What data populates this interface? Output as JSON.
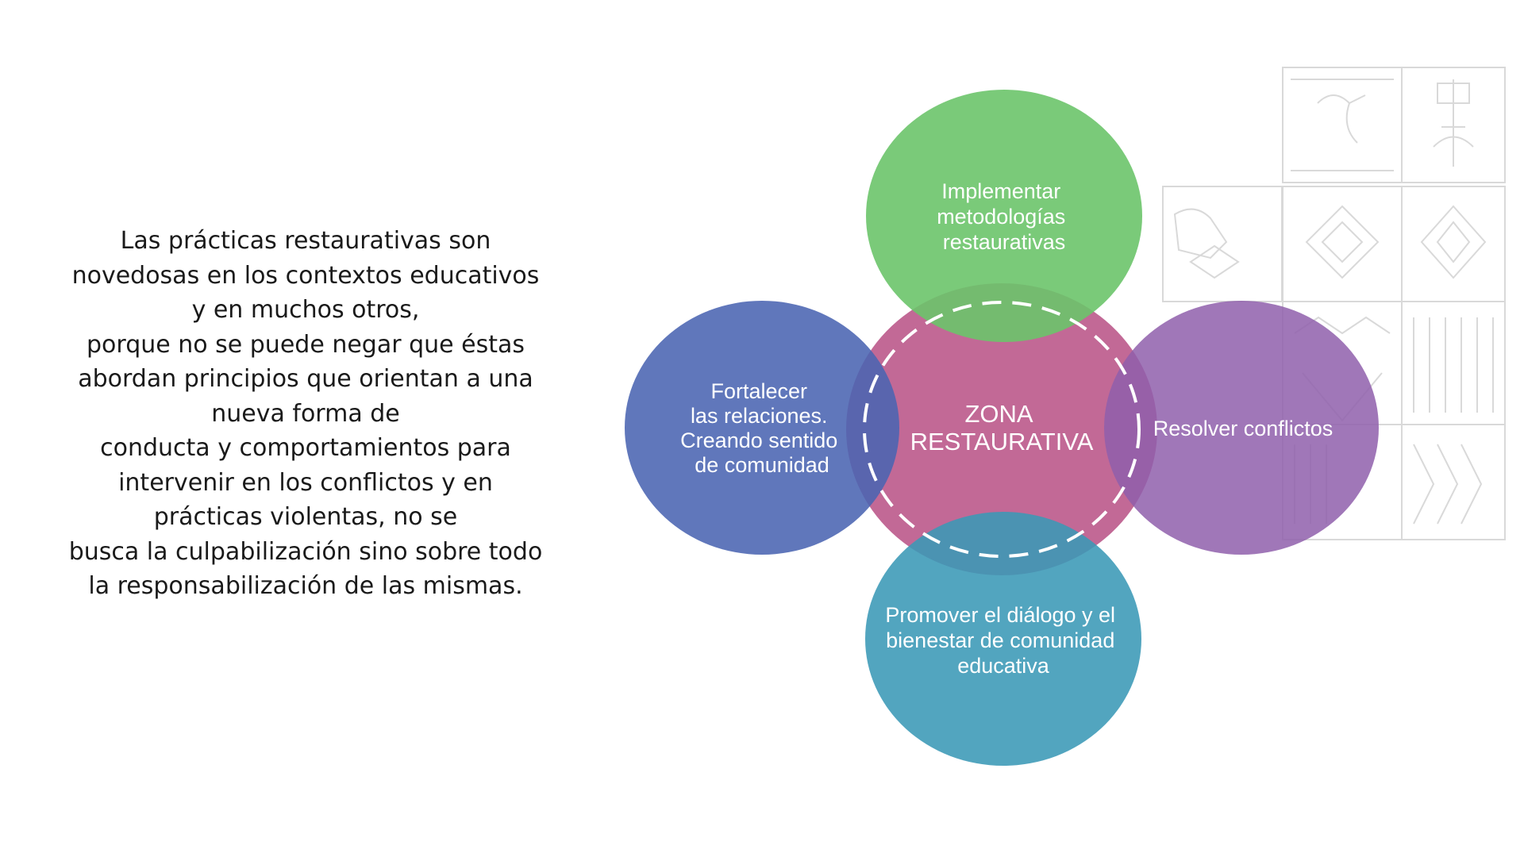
{
  "intro_text": {
    "lines": [
      "Las prácticas restaurativas son",
      "novedosas en los contextos educativos",
      "y en muchos otros,",
      "porque no se puede negar que éstas",
      "abordan principios que orientan a una",
      "nueva forma de",
      "conducta y comportamientos para",
      "intervenir en los conflictos y en",
      "prácticas violentas, no se",
      "busca la culpabilización sino sobre todo",
      "la responsabilización de las mismas."
    ]
  },
  "diagram": {
    "center": {
      "lines": [
        "ZONA",
        "RESTAURATIVA"
      ],
      "color": "#b5487f"
    },
    "top": {
      "lines": [
        "Implementar",
        "metodologías",
        "restaurativas"
      ],
      "color": "#6cc46a"
    },
    "left": {
      "lines": [
        "Fortalecer",
        "las relaciones.",
        "Creando sentido",
        "de comunidad"
      ],
      "color": "#4a64b2"
    },
    "right": {
      "lines": [
        "Resolver conflictos"
      ],
      "color": "#8f5fab"
    },
    "bottom": {
      "lines": [
        "Promover el diálogo y el",
        "bienestar de comunidad",
        "educativa"
      ],
      "color": "#3a98b6"
    }
  },
  "decoration": {
    "name": "andean-textile-pattern",
    "color": "#d6d6d6"
  }
}
